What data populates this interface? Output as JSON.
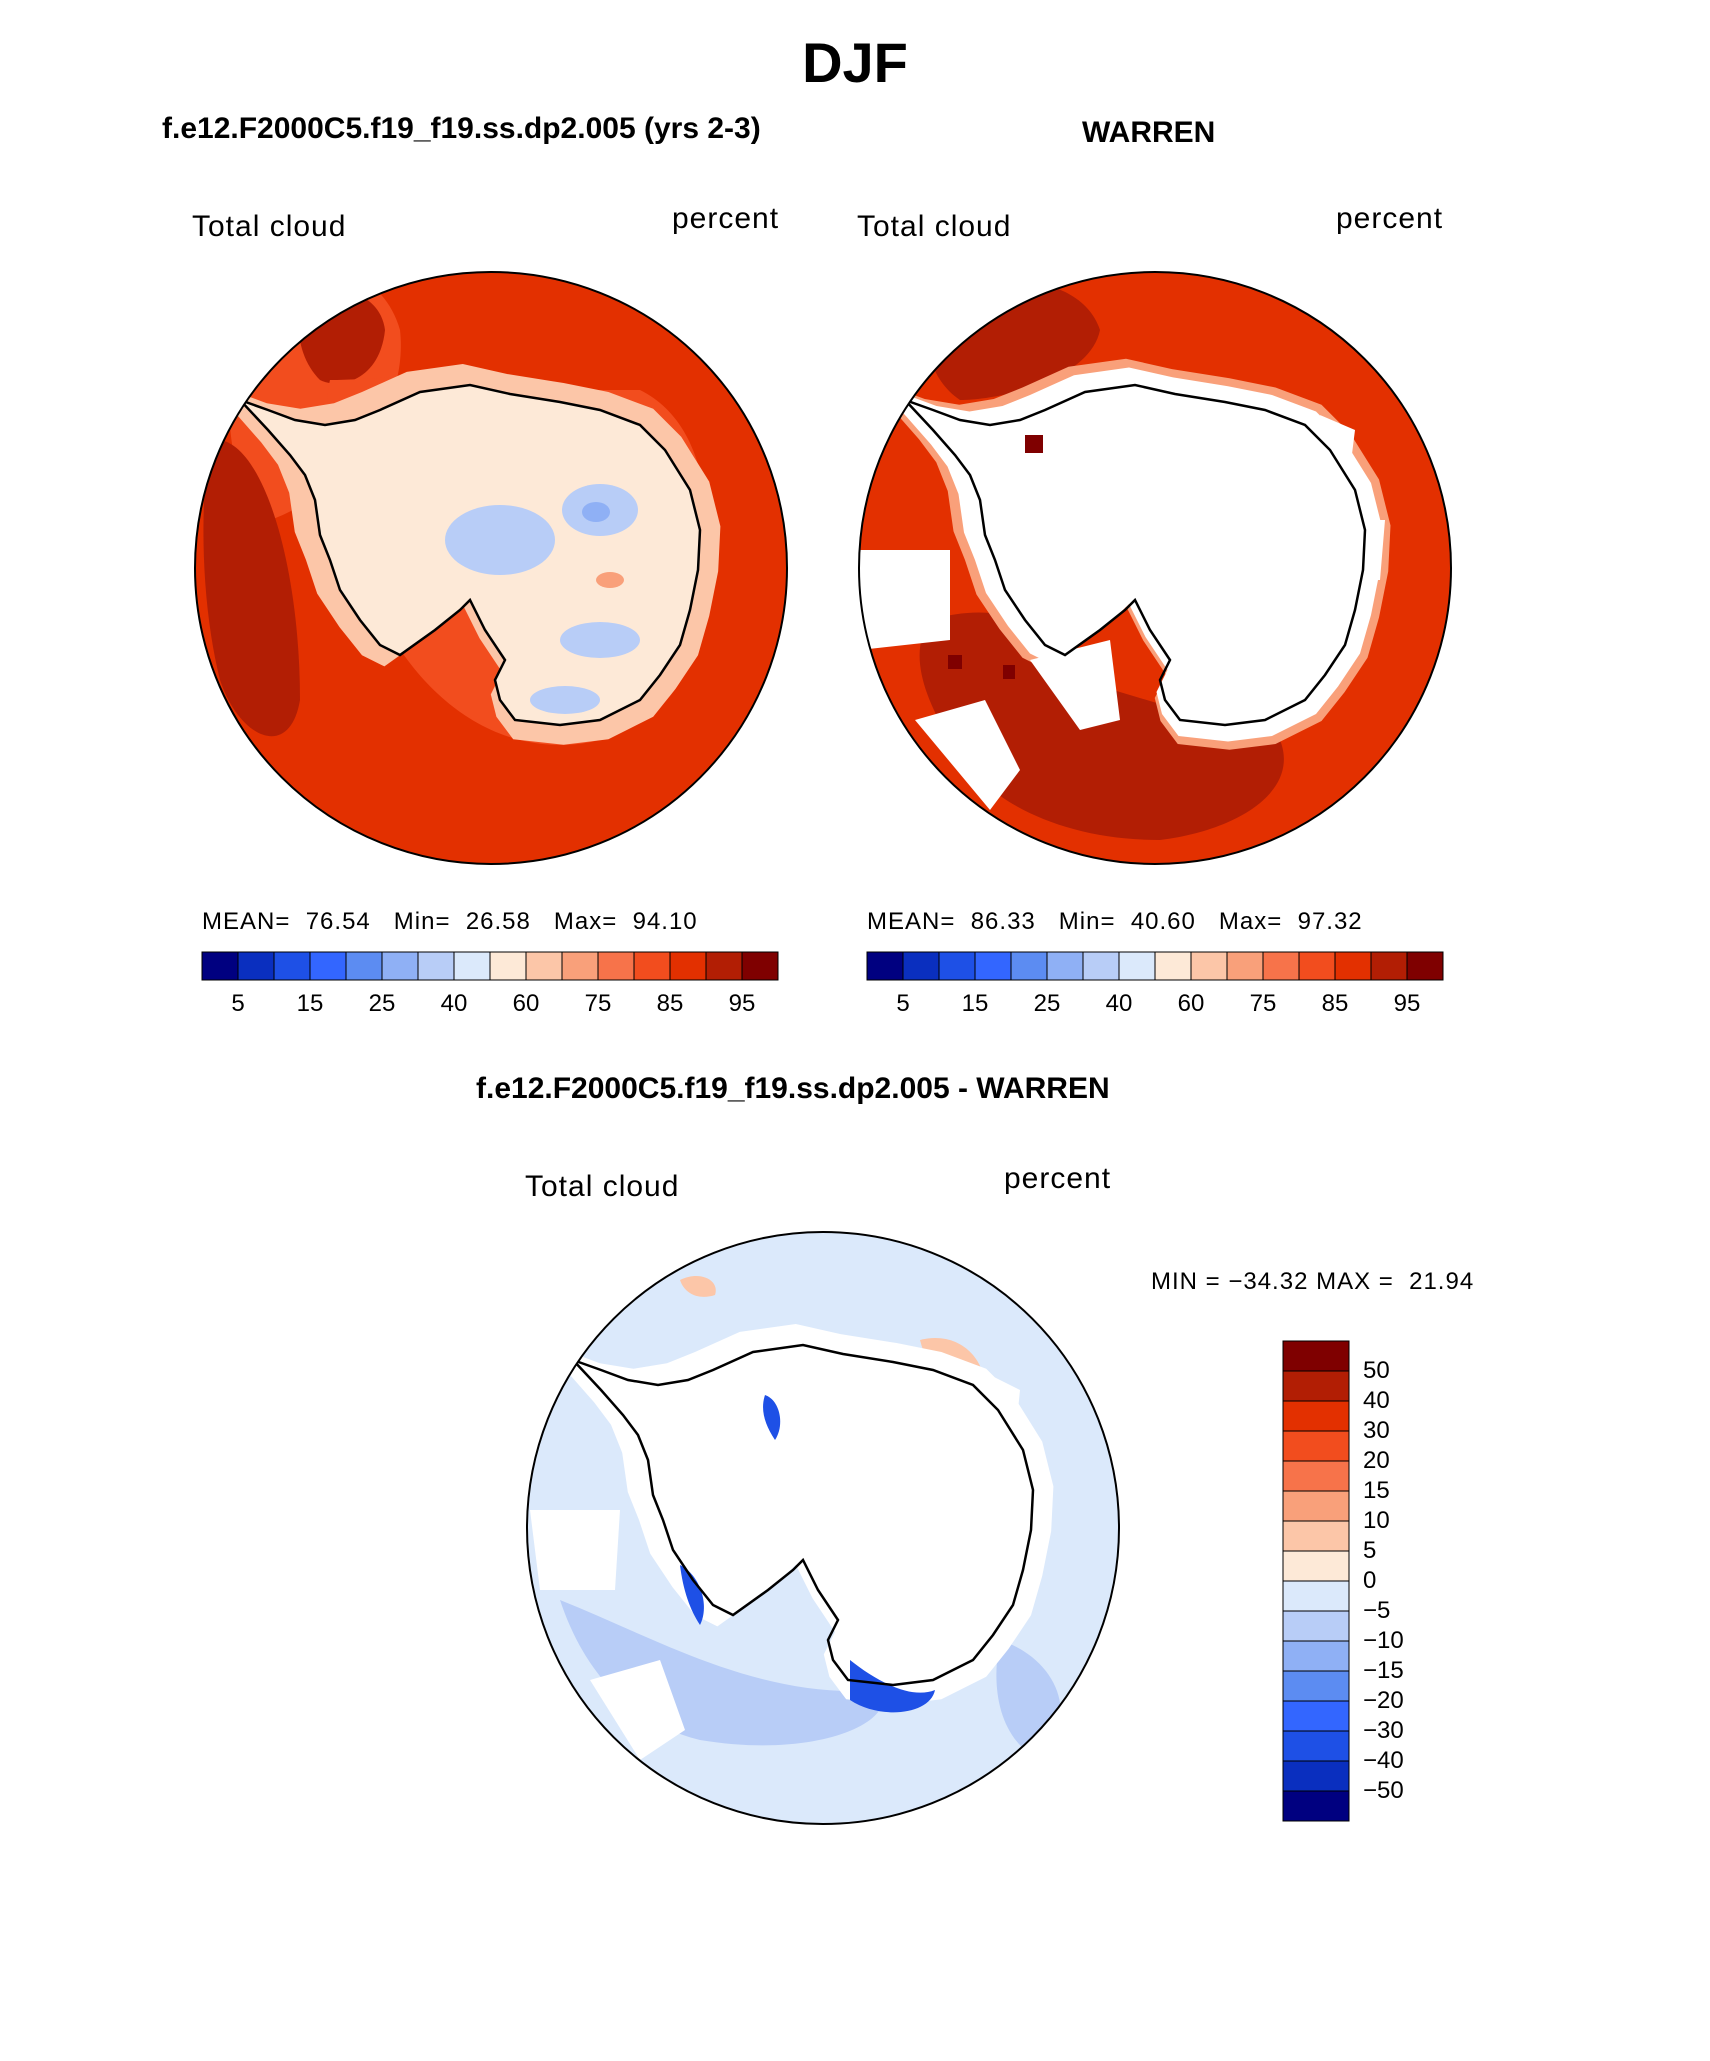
{
  "title": "DJF",
  "panels": [
    {
      "id": "model",
      "title": "f.e12.F2000C5.f19_f19.ss.dp2.005 (yrs 2-3)",
      "variable": "Total cloud",
      "units": "percent",
      "mean_label": "MEAN=",
      "mean": "76.54",
      "min_label": "Min=",
      "min": "26.58",
      "max_label": "Max=",
      "max": "94.10"
    },
    {
      "id": "obs",
      "title": "WARREN",
      "variable": "Total cloud",
      "units": "percent",
      "mean_label": "MEAN=",
      "mean": "86.33",
      "min_label": "Min=",
      "min": "40.60",
      "max_label": "Max=",
      "max": "97.32"
    },
    {
      "id": "diff",
      "title": "f.e12.F2000C5.f19_f19.ss.dp2.005 - WARREN",
      "variable": "Total cloud",
      "units": "percent",
      "minmax_text": "MIN = −34.32 MAX =  21.94"
    }
  ],
  "colorbar_abs": {
    "colors": [
      "#000080",
      "#0a2fbf",
      "#1e50e6",
      "#3366ff",
      "#5c8cf2",
      "#8fb0f5",
      "#b8cdf7",
      "#dbe9fb",
      "#fde9d7",
      "#fcc6a8",
      "#f9a07a",
      "#f7734a",
      "#f24d1e",
      "#e33000",
      "#b21e04",
      "#7f0000"
    ],
    "tick_labels": [
      "5",
      "15",
      "25",
      "40",
      "60",
      "75",
      "85",
      "95"
    ]
  },
  "colorbar_diff": {
    "colors": [
      "#000080",
      "#0a2fbf",
      "#1e50e6",
      "#3366ff",
      "#5c8cf2",
      "#8fb0f5",
      "#b8cdf7",
      "#dbe9fb",
      "#fde9d7",
      "#fcc6a8",
      "#f9a07a",
      "#f7734a",
      "#f24d1e",
      "#e33000",
      "#b21e04",
      "#7f0000"
    ],
    "tick_labels": [
      "50",
      "40",
      "30",
      "20",
      "15",
      "10",
      "5",
      "0",
      "−5",
      "−10",
      "−15",
      "−20",
      "−30",
      "−40",
      "−50"
    ]
  },
  "map_colors": {
    "ocean_model": "#e33000",
    "ocean_model_dark": "#b21e04",
    "ocean_model_light": "#f24d1e",
    "ocean_obs": "#e33000",
    "ocean_obs_dark": "#b21e04",
    "ocean_diff": "#dbe9fb",
    "ice_model": "#fde9d7",
    "ice_model_mid": "#fcc6a8",
    "ice_model_blue": "#b8cdf7",
    "land_obs": "#ffffff",
    "diff_neg": "#b8cdf7",
    "diff_neg_strong": "#1e50e6",
    "diff_pos": "#fcc6a8"
  }
}
